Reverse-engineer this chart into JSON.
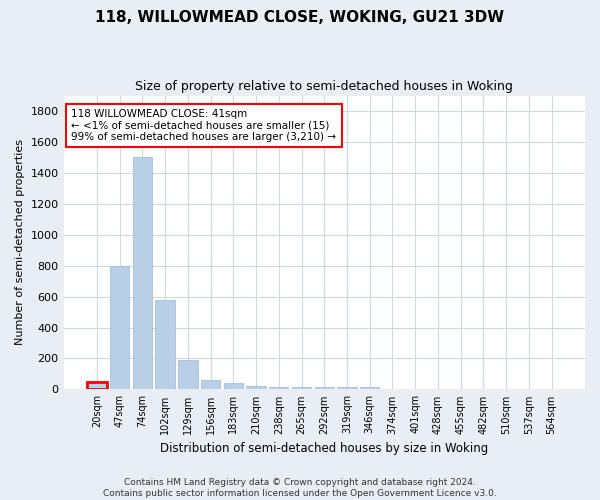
{
  "title": "118, WILLOWMEAD CLOSE, WOKING, GU21 3DW",
  "subtitle": "Size of property relative to semi-detached houses in Woking",
  "xlabel": "Distribution of semi-detached houses by size in Woking",
  "ylabel": "Number of semi-detached properties",
  "footer1": "Contains HM Land Registry data © Crown copyright and database right 2024.",
  "footer2": "Contains public sector information licensed under the Open Government Licence v3.0.",
  "annotation_line1": "118 WILLOWMEAD CLOSE: 41sqm",
  "annotation_line2": "← <1% of semi-detached houses are smaller (15)",
  "annotation_line3": "99% of semi-detached houses are larger (3,210) →",
  "bar_labels": [
    "20sqm",
    "47sqm",
    "74sqm",
    "102sqm",
    "129sqm",
    "156sqm",
    "183sqm",
    "210sqm",
    "238sqm",
    "265sqm",
    "292sqm",
    "319sqm",
    "346sqm",
    "374sqm",
    "401sqm",
    "428sqm",
    "455sqm",
    "482sqm",
    "510sqm",
    "537sqm",
    "564sqm"
  ],
  "bar_values": [
    50,
    800,
    1500,
    580,
    190,
    60,
    40,
    20,
    15,
    15,
    15,
    15,
    15,
    0,
    0,
    0,
    0,
    0,
    0,
    0,
    0
  ],
  "bar_color": "#b8cfe8",
  "bar_edge_color": "#9ab8d8",
  "highlight_bar_index": 0,
  "highlight_edge_color": "red",
  "annotation_box_edge_color": "red",
  "plot_bg_color": "#ffffff",
  "fig_bg_color": "#e8eef4",
  "ylim": [
    0,
    1900
  ],
  "yticks": [
    0,
    200,
    400,
    600,
    800,
    1000,
    1200,
    1400,
    1600,
    1800
  ]
}
